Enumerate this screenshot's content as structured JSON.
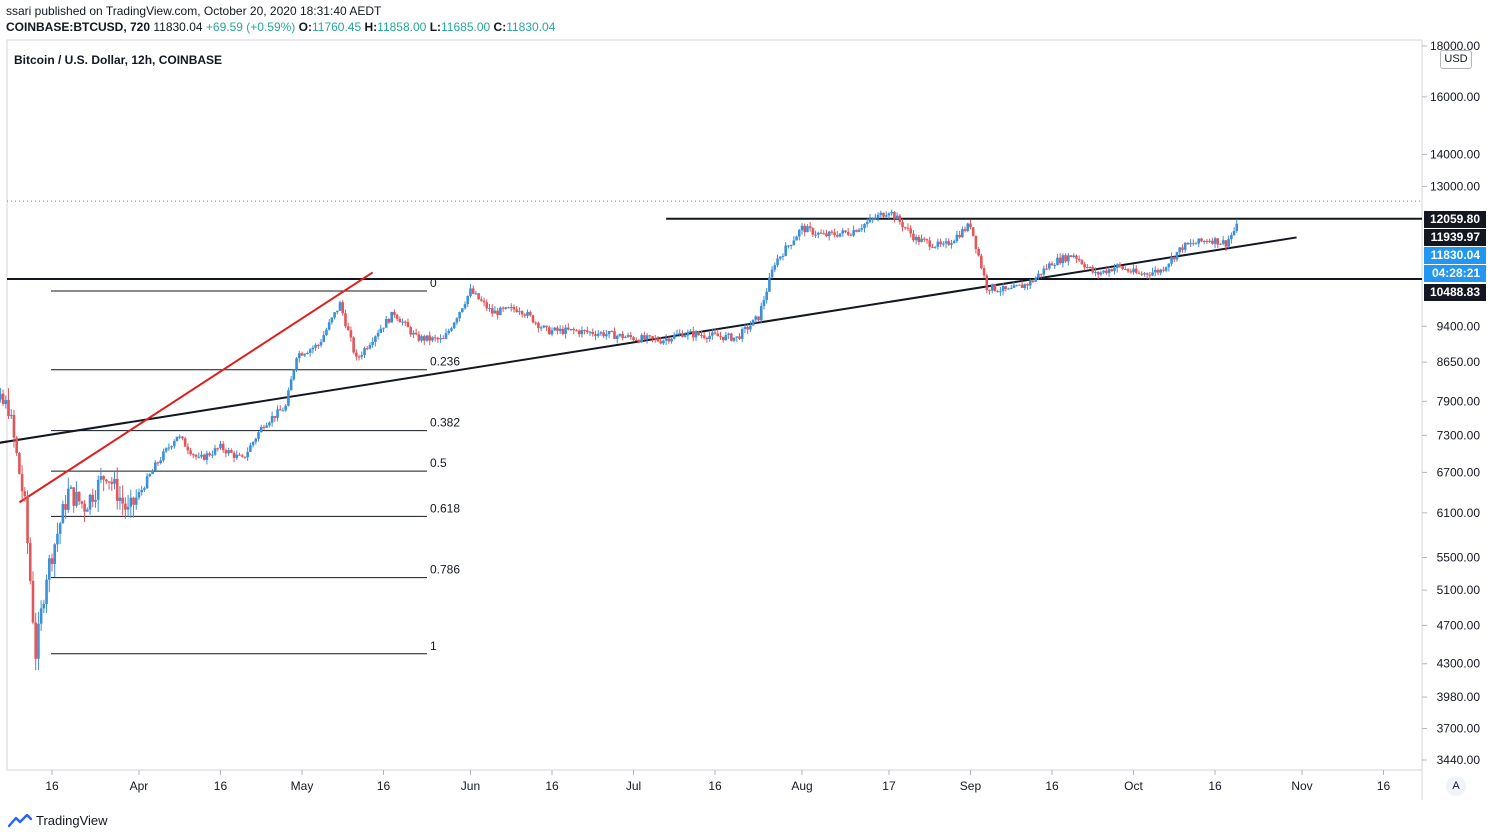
{
  "header": {
    "line1": "ssari published on TradingView.com, October 20, 2020 18:31:40 AEDT",
    "symbol": "COINBASE:BTCUSD, 720",
    "last": "11830.04",
    "change": "+69.59 (+0.59%)",
    "o_label": "O:",
    "o": "11760.45",
    "h_label": "H:",
    "h": "11858.00",
    "l_label": "L:",
    "l": "11685.00",
    "c_label": "C:",
    "c": "11830.04"
  },
  "pane_title": "Bitcoin / U.S. Dollar, 12h, COINBASE",
  "currency_badge": "USD",
  "auto_button": "A",
  "footer": {
    "brand": "TradingView"
  },
  "colors": {
    "up": "#3d8fd6",
    "down": "#e0575b",
    "trendline": "#131722",
    "fib_trend": "#e01e1e",
    "price_tag_blue": "#2196f3",
    "level_tag": "#131722"
  },
  "chart_data": {
    "type": "candlestick",
    "title": "Bitcoin / U.S. Dollar, 12h, COINBASE",
    "scale": "log",
    "y_ticks": [
      "18000.00",
      "16000.00",
      "14000.00",
      "13000.00",
      "9400.00",
      "8650.00",
      "7900.00",
      "7300.00",
      "6700.00",
      "6100.00",
      "5500.00",
      "5100.00",
      "4700.00",
      "4300.00",
      "3980.00",
      "3700.00",
      "3440.00"
    ],
    "x_ticks": [
      "16",
      "Apr",
      "16",
      "May",
      "16",
      "Jun",
      "16",
      "Jul",
      "16",
      "Aug",
      "17",
      "Sep",
      "16",
      "Oct",
      "16",
      "Nov",
      "16"
    ],
    "price_labels": [
      {
        "value": "12059.80",
        "style": "level"
      },
      {
        "value": "11939.97",
        "style": "level"
      },
      {
        "value": "11830.04",
        "style": "last"
      },
      {
        "value": "04:28:21",
        "style": "countdown"
      },
      {
        "value": "10488.83",
        "style": "level"
      }
    ],
    "fib_levels": [
      {
        "label": "0",
        "price": 10200
      },
      {
        "label": "0.236",
        "price": 8500
      },
      {
        "label": "0.382",
        "price": 7380
      },
      {
        "label": "0.5",
        "price": 6720
      },
      {
        "label": "0.618",
        "price": 6050
      },
      {
        "label": "0.786",
        "price": 5250
      },
      {
        "label": "1",
        "price": 4400
      }
    ],
    "horizontal_levels": [
      {
        "price": 12059.8,
        "from": "Jul 07",
        "to": "end"
      },
      {
        "price": 10488.83,
        "from": "start",
        "to": "end"
      }
    ],
    "trendlines": [
      {
        "name": "support",
        "from": {
          "date": "Mar 01",
          "price": 7100
        },
        "to": {
          "date": "Oct 31",
          "price": 11550
        }
      },
      {
        "name": "fib-trend",
        "from": {
          "date": "Mar 10",
          "price": 6250
        },
        "to": {
          "date": "May 14",
          "price": 10650
        }
      }
    ],
    "price_path": [
      [
        "Mar 01",
        8900
      ],
      [
        "Mar 05",
        7900
      ],
      [
        "Mar 08",
        7800
      ],
      [
        "Mar 11",
        6200
      ],
      [
        "Mar 13",
        4400
      ],
      [
        "Mar 15",
        5300
      ],
      [
        "Mar 19",
        6400
      ],
      [
        "Mar 22",
        6200
      ],
      [
        "Mar 26",
        6700
      ],
      [
        "Mar 30",
        6100
      ],
      [
        "Apr 04",
        6800
      ],
      [
        "Apr 08",
        7300
      ],
      [
        "Apr 12",
        6900
      ],
      [
        "Apr 16",
        7100
      ],
      [
        "Apr 20",
        6900
      ],
      [
        "Apr 24",
        7500
      ],
      [
        "Apr 28",
        7800
      ],
      [
        "Apr 30",
        8800
      ],
      [
        "May 04",
        9000
      ],
      [
        "May 08",
        9900
      ],
      [
        "May 11",
        8700
      ],
      [
        "May 15",
        9300
      ],
      [
        "May 18",
        9700
      ],
      [
        "May 22",
        9150
      ],
      [
        "May 27",
        9100
      ],
      [
        "Jun 01",
        10200
      ],
      [
        "Jun 05",
        9700
      ],
      [
        "Jun 10",
        9800
      ],
      [
        "Jun 15",
        9300
      ],
      [
        "Jun 20",
        9300
      ],
      [
        "Jun 25",
        9250
      ],
      [
        "Jul 01",
        9150
      ],
      [
        "Jul 06",
        9100
      ],
      [
        "Jul 10",
        9250
      ],
      [
        "Jul 15",
        9200
      ],
      [
        "Jul 20",
        9150
      ],
      [
        "Jul 24",
        9600
      ],
      [
        "Jul 27",
        10900
      ],
      [
        "Aug 01",
        11800
      ],
      [
        "Aug 05",
        11600
      ],
      [
        "Aug 10",
        11700
      ],
      [
        "Aug 17",
        12300
      ],
      [
        "Aug 22",
        11500
      ],
      [
        "Aug 27",
        11300
      ],
      [
        "Sep 01",
        11900
      ],
      [
        "Sep 04",
        10300
      ],
      [
        "Sep 08",
        10200
      ],
      [
        "Sep 12",
        10400
      ],
      [
        "Sep 16",
        10900
      ],
      [
        "Sep 20",
        11100
      ],
      [
        "Sep 24",
        10600
      ],
      [
        "Sep 28",
        10800
      ],
      [
        "Oct 02",
        10600
      ],
      [
        "Oct 06",
        10700
      ],
      [
        "Oct 10",
        11300
      ],
      [
        "Oct 15",
        11500
      ],
      [
        "Oct 18",
        11400
      ],
      [
        "Oct 20",
        11830
      ]
    ]
  }
}
